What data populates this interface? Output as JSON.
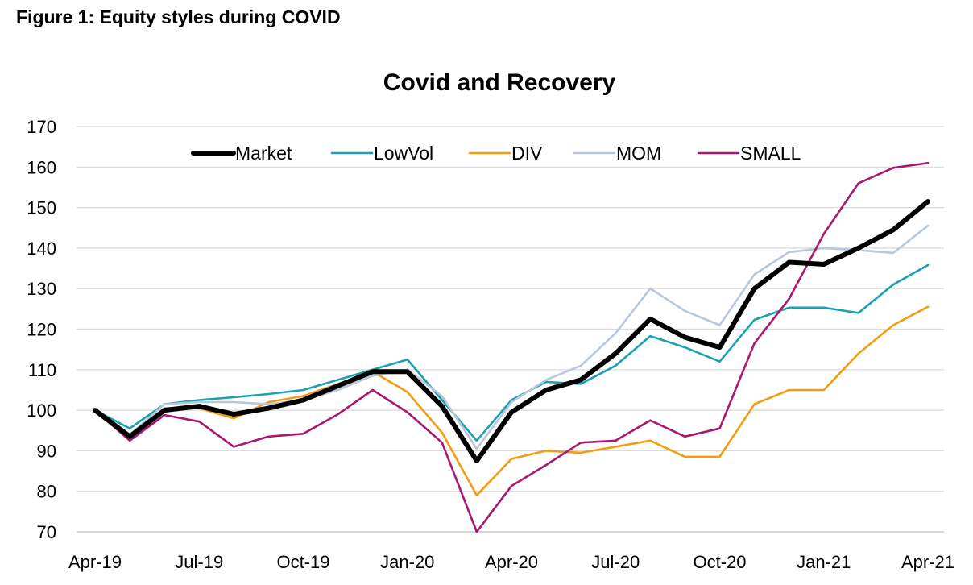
{
  "figure_title": "Figure 1: Equity styles during COVID",
  "chart_data": {
    "type": "line",
    "title": "Covid and Recovery",
    "xlabel": "",
    "ylabel": "",
    "ylim": [
      70,
      170
    ],
    "yticks": [
      70,
      80,
      90,
      100,
      110,
      120,
      130,
      140,
      150,
      160,
      170
    ],
    "grid": "horizontal",
    "legend_position": "top",
    "x": [
      "Apr-19",
      "May-19",
      "Jun-19",
      "Jul-19",
      "Aug-19",
      "Sep-19",
      "Oct-19",
      "Nov-19",
      "Dec-19",
      "Jan-20",
      "Feb-20",
      "Mar-20",
      "Apr-20",
      "May-20",
      "Jun-20",
      "Jul-20",
      "Aug-20",
      "Sep-20",
      "Oct-20",
      "Nov-20",
      "Dec-20",
      "Jan-21",
      "Feb-21",
      "Mar-21",
      "Apr-21"
    ],
    "xtick_labels": [
      "Apr-19",
      "Jul-19",
      "Oct-19",
      "Jan-20",
      "Apr-20",
      "Jul-20",
      "Oct-20",
      "Jan-21",
      "Apr-21"
    ],
    "xtick_index": [
      0,
      3,
      6,
      9,
      12,
      15,
      18,
      21,
      24
    ],
    "series": [
      {
        "name": "Market",
        "color": "#000000",
        "width": "thick",
        "values": [
          100,
          93.5,
          100,
          101,
          99,
          100.5,
          102.5,
          106,
          109.5,
          109.5,
          101,
          87.5,
          99.5,
          105,
          107.5,
          114,
          122.5,
          118,
          115.5,
          130,
          136.5,
          136,
          140,
          144.5,
          151.5
        ]
      },
      {
        "name": "LowVol",
        "color": "#1AA0B0",
        "width": "normal",
        "values": [
          100,
          95.5,
          101.5,
          102.5,
          103.2,
          104,
          105,
          107.5,
          110,
          112.5,
          102.5,
          92.5,
          102.5,
          107,
          106.5,
          111,
          118.3,
          115.5,
          112,
          122.3,
          125.3,
          125.3,
          124,
          131,
          135.8
        ]
      },
      {
        "name": "DIV",
        "color": "#F39C12",
        "width": "normal",
        "values": [
          100,
          93.5,
          100.5,
          100.5,
          98,
          102,
          103.5,
          106.5,
          109.5,
          104.5,
          94.5,
          79,
          88,
          90,
          89.5,
          91,
          92.5,
          88.5,
          88.5,
          101.5,
          105,
          105,
          114,
          121,
          125.5
        ]
      },
      {
        "name": "MOM",
        "color": "#B8C8DA",
        "width": "normal",
        "values": [
          100,
          94,
          101.5,
          102,
          102,
          101.5,
          102.5,
          105,
          108.5,
          110,
          103.5,
          90.5,
          102,
          107.5,
          111,
          119,
          130,
          124.5,
          121,
          133.5,
          139,
          140,
          139.5,
          138.8,
          145.5
        ]
      },
      {
        "name": "SMALL",
        "color": "#A8186F",
        "width": "normal",
        "values": [
          100,
          92.5,
          98.8,
          97.2,
          91,
          93.5,
          94.2,
          99,
          105,
          99.5,
          92,
          70,
          81.3,
          86.5,
          92,
          92.5,
          97.5,
          93.5,
          95.5,
          116.5,
          127.5,
          143.5,
          156,
          159.8,
          161
        ]
      }
    ]
  }
}
